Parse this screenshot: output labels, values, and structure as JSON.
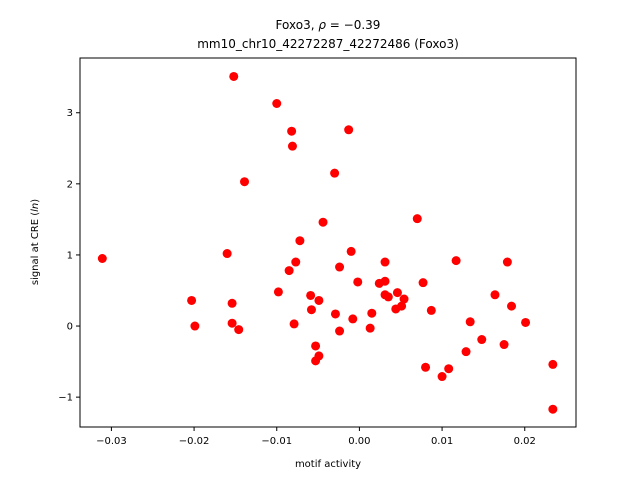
{
  "chart_data": {
    "type": "scatter",
    "title_line1_prefix": "Foxo3, ",
    "title_line1_rho": "ρ",
    "title_line1_suffix": " = −0.39",
    "title_line2": "mm10_chr10_42272287_42272486 (Foxo3)",
    "xlabel": "motif activity",
    "ylabel_prefix": "signal at CRE (",
    "ylabel_ln": "ln",
    "ylabel_suffix": ")",
    "xlim": [
      -0.0338,
      0.0262
    ],
    "ylim": [
      -1.42,
      3.77
    ],
    "xticks": [
      -0.03,
      -0.02,
      -0.01,
      0.0,
      0.01,
      0.02
    ],
    "xtick_labels": [
      "−0.03",
      "−0.02",
      "−0.01",
      "0.00",
      "0.01",
      "0.02"
    ],
    "yticks": [
      -1,
      0,
      1,
      2,
      3
    ],
    "ytick_labels": [
      "−1",
      "0",
      "1",
      "2",
      "3"
    ],
    "marker_color": "#ff0000",
    "grid": false,
    "points": [
      {
        "x": -0.0311,
        "y": 0.95
      },
      {
        "x": -0.0203,
        "y": 0.36
      },
      {
        "x": -0.0199,
        "y": 0.0
      },
      {
        "x": -0.016,
        "y": 1.02
      },
      {
        "x": -0.0154,
        "y": 0.32
      },
      {
        "x": -0.0154,
        "y": 0.04
      },
      {
        "x": -0.0146,
        "y": -0.05
      },
      {
        "x": -0.0152,
        "y": 3.51
      },
      {
        "x": -0.0139,
        "y": 2.03
      },
      {
        "x": -0.01,
        "y": 3.13
      },
      {
        "x": -0.0098,
        "y": 0.48
      },
      {
        "x": -0.0082,
        "y": 2.74
      },
      {
        "x": -0.0081,
        "y": 2.53
      },
      {
        "x": -0.0085,
        "y": 0.78
      },
      {
        "x": -0.0077,
        "y": 0.9
      },
      {
        "x": -0.0072,
        "y": 1.2
      },
      {
        "x": -0.0079,
        "y": 0.03
      },
      {
        "x": -0.0059,
        "y": 0.43
      },
      {
        "x": -0.0058,
        "y": 0.23
      },
      {
        "x": -0.0053,
        "y": -0.28
      },
      {
        "x": -0.0053,
        "y": -0.49
      },
      {
        "x": -0.0049,
        "y": -0.42
      },
      {
        "x": -0.0049,
        "y": 0.36
      },
      {
        "x": -0.0044,
        "y": 1.46
      },
      {
        "x": -0.003,
        "y": 2.15
      },
      {
        "x": -0.0029,
        "y": 0.17
      },
      {
        "x": -0.0024,
        "y": 0.83
      },
      {
        "x": -0.0024,
        "y": -0.07
      },
      {
        "x": -0.0013,
        "y": 2.76
      },
      {
        "x": -0.001,
        "y": 1.05
      },
      {
        "x": -0.0008,
        "y": 0.1
      },
      {
        "x": -0.0002,
        "y": 0.62
      },
      {
        "x": 0.0013,
        "y": -0.03
      },
      {
        "x": 0.0015,
        "y": 0.18
      },
      {
        "x": 0.0024,
        "y": 0.6
      },
      {
        "x": 0.0031,
        "y": 0.9
      },
      {
        "x": 0.0031,
        "y": 0.63
      },
      {
        "x": 0.0031,
        "y": 0.44
      },
      {
        "x": 0.0035,
        "y": 0.41
      },
      {
        "x": 0.0044,
        "y": 0.24
      },
      {
        "x": 0.0046,
        "y": 0.47
      },
      {
        "x": 0.0051,
        "y": 0.28
      },
      {
        "x": 0.0054,
        "y": 0.38
      },
      {
        "x": 0.007,
        "y": 1.51
      },
      {
        "x": 0.0077,
        "y": 0.61
      },
      {
        "x": 0.008,
        "y": -0.58
      },
      {
        "x": 0.0087,
        "y": 0.22
      },
      {
        "x": 0.01,
        "y": -0.71
      },
      {
        "x": 0.0108,
        "y": -0.6
      },
      {
        "x": 0.0117,
        "y": 0.92
      },
      {
        "x": 0.0129,
        "y": -0.36
      },
      {
        "x": 0.0134,
        "y": 0.06
      },
      {
        "x": 0.0148,
        "y": -0.19
      },
      {
        "x": 0.0164,
        "y": 0.44
      },
      {
        "x": 0.0175,
        "y": -0.26
      },
      {
        "x": 0.0179,
        "y": 0.9
      },
      {
        "x": 0.0184,
        "y": 0.28
      },
      {
        "x": 0.0201,
        "y": 0.05
      },
      {
        "x": 0.0234,
        "y": -0.54
      },
      {
        "x": 0.0234,
        "y": -1.17
      }
    ]
  }
}
